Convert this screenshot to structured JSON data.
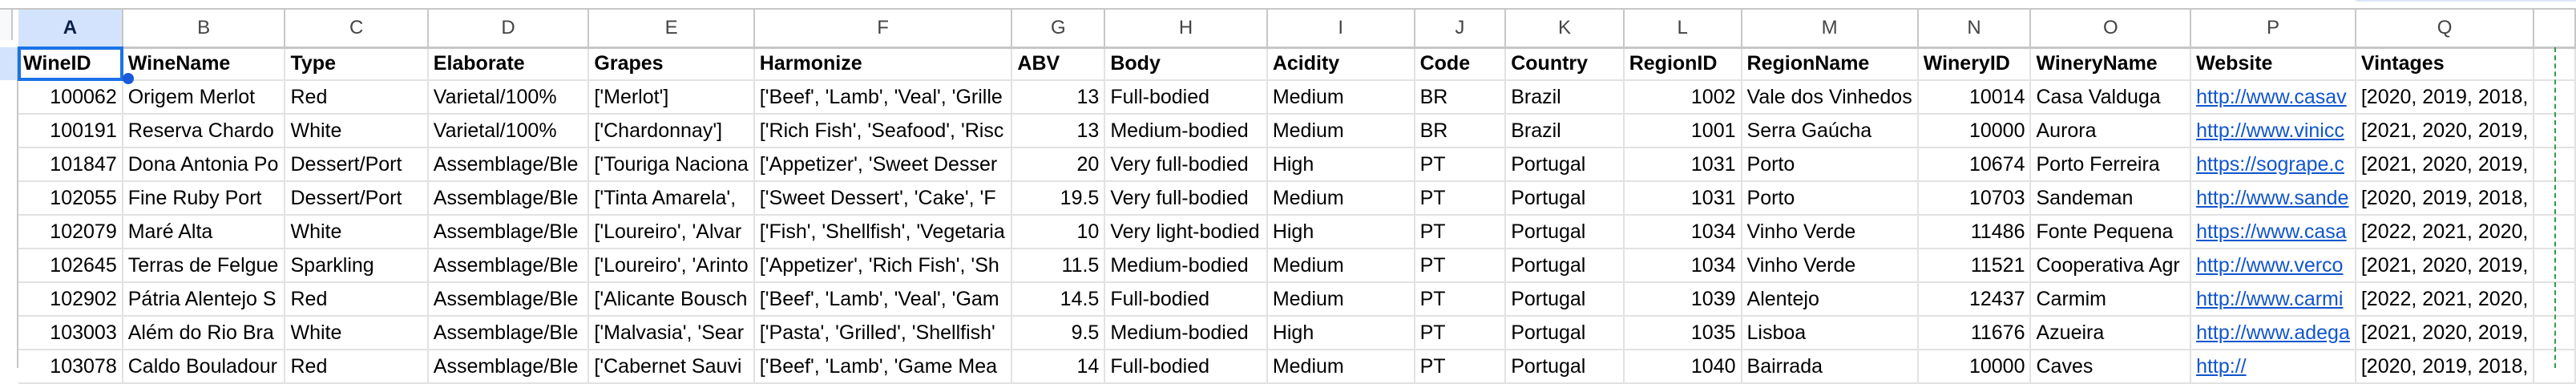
{
  "column_letters": [
    "A",
    "B",
    "C",
    "D",
    "E",
    "F",
    "G",
    "H",
    "I",
    "J",
    "K",
    "L",
    "M",
    "N",
    "O",
    "P",
    "Q",
    ""
  ],
  "selected_column": "A",
  "headers": [
    "WineID",
    "WineName",
    "Type",
    "Elaborate",
    "Grapes",
    "Harmonize",
    "ABV",
    "Body",
    "Acidity",
    "Code",
    "Country",
    "RegionID",
    "RegionName",
    "WineryID",
    "WineryName",
    "Website",
    "Vintages",
    ""
  ],
  "numeric_columns": [
    0,
    6,
    11,
    13
  ],
  "link_column": 15,
  "rows": [
    [
      "100062",
      "Origem Merlot",
      "Red",
      "Varietal/100%",
      "['Merlot']",
      "['Beef', 'Lamb', 'Veal', 'Grille",
      "13",
      "Full-bodied",
      "Medium",
      "BR",
      "Brazil",
      "1002",
      "Vale dos Vinhedos",
      "10014",
      "Casa Valduga",
      "http://www.casav",
      "[2020, 2019, 2018,",
      ""
    ],
    [
      "100191",
      "Reserva Chardo",
      "White",
      "Varietal/100%",
      "['Chardonnay']",
      "['Rich Fish', 'Seafood', 'Risc",
      "13",
      "Medium-bodied",
      "Medium",
      "BR",
      "Brazil",
      "1001",
      "Serra Gaúcha",
      "10000",
      "Aurora",
      "http://www.vinicc",
      "[2021, 2020, 2019,",
      ""
    ],
    [
      "101847",
      "Dona Antonia Po",
      "Dessert/Port",
      "Assemblage/Ble",
      "['Touriga Naciona",
      "['Appetizer', 'Sweet Desser",
      "20",
      "Very full-bodied",
      "High",
      "PT",
      "Portugal",
      "1031",
      "Porto",
      "10674",
      "Porto Ferreira",
      "https://sogrape.c",
      "[2021, 2020, 2019,",
      ""
    ],
    [
      "102055",
      "Fine Ruby Port",
      "Dessert/Port",
      "Assemblage/Ble",
      "['Tinta Amarela',",
      "['Sweet Dessert', 'Cake', 'F",
      "19.5",
      "Very full-bodied",
      "Medium",
      "PT",
      "Portugal",
      "1031",
      "Porto",
      "10703",
      "Sandeman",
      "http://www.sande",
      "[2020, 2019, 2018,",
      ""
    ],
    [
      "102079",
      "Maré Alta",
      "White",
      "Assemblage/Ble",
      "['Loureiro', 'Alvar",
      "['Fish', 'Shellfish', 'Vegetaria",
      "10",
      "Very light-bodied",
      "High",
      "PT",
      "Portugal",
      "1034",
      "Vinho Verde",
      "11486",
      "Fonte Pequena",
      "https://www.casa",
      "[2022, 2021, 2020,",
      ""
    ],
    [
      "102645",
      "Terras de Felgue",
      "Sparkling",
      "Assemblage/Ble",
      "['Loureiro', 'Arinto",
      "['Appetizer', 'Rich Fish', 'Sh",
      "11.5",
      "Medium-bodied",
      "Medium",
      "PT",
      "Portugal",
      "1034",
      "Vinho Verde",
      "11521",
      "Cooperativa Agr",
      "http://www.verco",
      "[2021, 2020, 2019,",
      ""
    ],
    [
      "102902",
      "Pátria Alentejo S",
      "Red",
      "Assemblage/Ble",
      "['Alicante Bousch",
      "['Beef', 'Lamb', 'Veal', 'Gam",
      "14.5",
      "Full-bodied",
      "Medium",
      "PT",
      "Portugal",
      "1039",
      "Alentejo",
      "12437",
      "Carmim",
      "http://www.carmi",
      "[2022, 2021, 2020,",
      ""
    ],
    [
      "103003",
      "Além do Rio Bra",
      "White",
      "Assemblage/Ble",
      "['Malvasia', 'Sear",
      "['Pasta', 'Grilled', 'Shellfish'",
      "9.5",
      "Medium-bodied",
      "High",
      "PT",
      "Portugal",
      "1035",
      "Lisboa",
      "11676",
      "Azueira",
      "http://www.adega",
      "[2021, 2020, 2019,",
      ""
    ],
    [
      "103078",
      "Caldo Bouladour",
      "Red",
      "Assemblage/Ble",
      "['Cabernet Sauvi",
      "['Beef', 'Lamb', 'Game Mea",
      "14",
      "Full-bodied",
      "Medium",
      "PT",
      "Portugal",
      "1040",
      "Bairrada",
      "10000",
      "Caves",
      "http://",
      "[2020, 2019, 2018,",
      ""
    ]
  ]
}
